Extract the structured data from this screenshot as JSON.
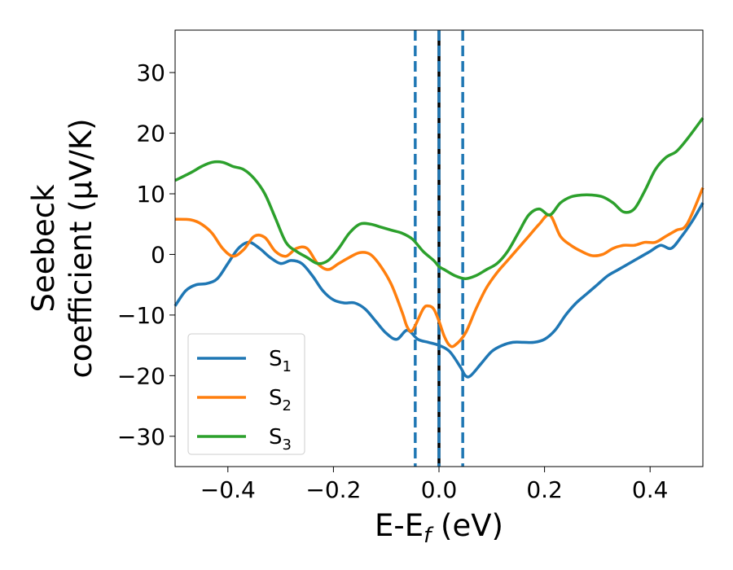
{
  "chart_data": {
    "type": "line",
    "xlabel": {
      "main": "E-E",
      "sub": "f",
      "suffix": " (eV)"
    },
    "ylabel": {
      "line1": "Seebeck",
      "line2": "coefficient  (μV/K)"
    },
    "xlim": [
      -0.5,
      0.5
    ],
    "ylim": [
      -35,
      37
    ],
    "xticks": [
      -0.4,
      -0.2,
      0.0,
      0.2,
      0.4
    ],
    "xtick_labels": [
      "−0.4",
      "−0.2",
      "0.0",
      "0.2",
      "0.4"
    ],
    "yticks": [
      -30,
      -20,
      -10,
      0,
      10,
      20,
      30
    ],
    "ytick_labels": [
      "−30",
      "−20",
      "−10",
      "0",
      "10",
      "20",
      "30"
    ],
    "grid": false,
    "legend_position": "lower-left",
    "vlines": [
      {
        "x": -0.045,
        "style": "dashed",
        "color": "#1f77b4"
      },
      {
        "x": 0.045,
        "style": "dashed",
        "color": "#1f77b4"
      },
      {
        "x": 0.0,
        "style": "solid",
        "color": "#000000"
      },
      {
        "x": 0.0,
        "style": "dashed",
        "color": "#1f77b4"
      }
    ],
    "series": [
      {
        "name": "S",
        "sub": "1",
        "color": "#1f77b4",
        "x": [
          -0.5,
          -0.48,
          -0.46,
          -0.44,
          -0.42,
          -0.4,
          -0.38,
          -0.36,
          -0.34,
          -0.32,
          -0.3,
          -0.28,
          -0.26,
          -0.24,
          -0.22,
          -0.2,
          -0.18,
          -0.16,
          -0.14,
          -0.12,
          -0.1,
          -0.08,
          -0.06,
          -0.04,
          -0.02,
          0.0,
          0.02,
          0.04,
          0.05,
          0.06,
          0.08,
          0.1,
          0.12,
          0.14,
          0.16,
          0.18,
          0.2,
          0.22,
          0.24,
          0.26,
          0.28,
          0.3,
          0.32,
          0.34,
          0.36,
          0.38,
          0.4,
          0.42,
          0.44,
          0.46,
          0.48,
          0.5
        ],
        "y": [
          -8.5,
          -6.0,
          -5.0,
          -4.8,
          -4.0,
          -1.5,
          1.0,
          2.0,
          1.0,
          -0.5,
          -1.5,
          -1.0,
          -1.5,
          -3.5,
          -6.0,
          -7.5,
          -8.0,
          -8.0,
          -9.0,
          -11.0,
          -13.0,
          -14.0,
          -12.5,
          -14.0,
          -14.5,
          -15.0,
          -16.0,
          -18.5,
          -20.0,
          -20.0,
          -18.0,
          -16.0,
          -15.0,
          -14.5,
          -14.5,
          -14.5,
          -14.0,
          -12.5,
          -10.0,
          -8.0,
          -6.5,
          -5.0,
          -3.5,
          -2.5,
          -1.5,
          -0.5,
          0.5,
          1.5,
          1.0,
          3.0,
          5.5,
          8.5
        ]
      },
      {
        "name": "S",
        "sub": "2",
        "color": "#ff7f0e",
        "x": [
          -0.5,
          -0.47,
          -0.45,
          -0.43,
          -0.41,
          -0.39,
          -0.37,
          -0.35,
          -0.33,
          -0.31,
          -0.29,
          -0.27,
          -0.25,
          -0.23,
          -0.21,
          -0.19,
          -0.17,
          -0.15,
          -0.13,
          -0.11,
          -0.09,
          -0.07,
          -0.06,
          -0.05,
          -0.03,
          -0.02,
          -0.01,
          0.0,
          0.01,
          0.02,
          0.03,
          0.05,
          0.07,
          0.09,
          0.11,
          0.13,
          0.15,
          0.17,
          0.19,
          0.21,
          0.23,
          0.25,
          0.27,
          0.29,
          0.31,
          0.33,
          0.35,
          0.37,
          0.39,
          0.41,
          0.43,
          0.45,
          0.47,
          0.5
        ],
        "y": [
          5.8,
          5.7,
          5.0,
          3.5,
          1.0,
          -0.3,
          0.8,
          3.0,
          2.8,
          0.5,
          -0.3,
          1.0,
          1.0,
          -1.5,
          -2.5,
          -1.5,
          -0.5,
          0.3,
          0.0,
          -2.0,
          -5.0,
          -9.5,
          -12.0,
          -12.5,
          -9.0,
          -8.5,
          -9.0,
          -11.0,
          -13.5,
          -15.0,
          -15.0,
          -13.0,
          -9.0,
          -5.5,
          -3.0,
          -1.0,
          1.0,
          3.0,
          5.0,
          6.5,
          3.0,
          1.5,
          0.5,
          -0.2,
          0.0,
          1.0,
          1.5,
          1.5,
          2.0,
          2.0,
          3.0,
          4.0,
          5.0,
          11.0
        ]
      },
      {
        "name": "S",
        "sub": "3",
        "color": "#2ca02c",
        "x": [
          -0.5,
          -0.47,
          -0.45,
          -0.43,
          -0.41,
          -0.39,
          -0.37,
          -0.35,
          -0.33,
          -0.31,
          -0.29,
          -0.27,
          -0.25,
          -0.23,
          -0.21,
          -0.19,
          -0.17,
          -0.15,
          -0.13,
          -0.11,
          -0.09,
          -0.07,
          -0.05,
          -0.03,
          -0.01,
          0.0,
          0.01,
          0.03,
          0.05,
          0.07,
          0.09,
          0.11,
          0.13,
          0.15,
          0.17,
          0.19,
          0.21,
          0.23,
          0.25,
          0.27,
          0.29,
          0.31,
          0.33,
          0.35,
          0.37,
          0.39,
          0.41,
          0.43,
          0.45,
          0.47,
          0.5
        ],
        "y": [
          12.2,
          13.5,
          14.5,
          15.2,
          15.2,
          14.5,
          14.0,
          12.5,
          10.0,
          6.0,
          2.0,
          0.5,
          -0.5,
          -1.5,
          -1.0,
          1.0,
          3.5,
          5.0,
          5.0,
          4.5,
          4.0,
          3.5,
          2.5,
          0.5,
          -1.0,
          -2.0,
          -2.5,
          -3.5,
          -4.0,
          -3.5,
          -2.5,
          -1.5,
          0.5,
          3.5,
          6.5,
          7.5,
          6.5,
          8.5,
          9.5,
          9.8,
          9.8,
          9.5,
          8.5,
          7.0,
          7.5,
          10.5,
          14.0,
          16.0,
          17.0,
          19.0,
          22.5
        ]
      }
    ]
  }
}
